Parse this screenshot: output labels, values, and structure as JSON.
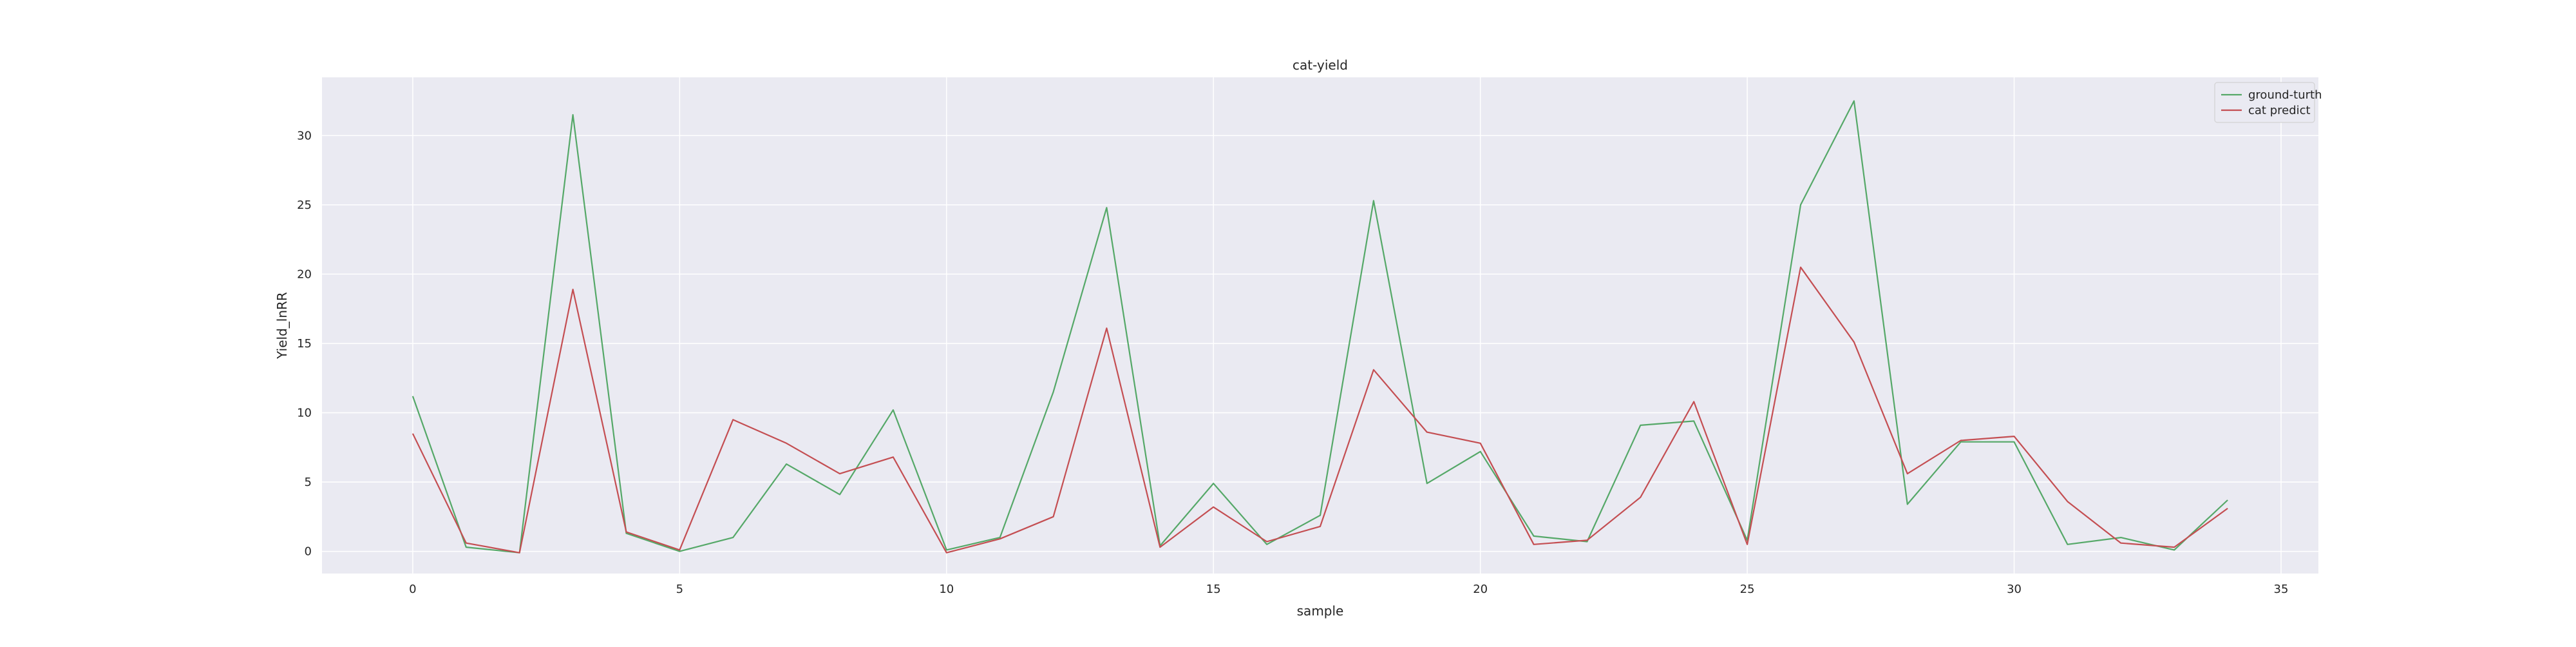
{
  "chart_data": {
    "type": "line",
    "title": "cat-yield",
    "xlabel": "sample",
    "ylabel": "Yield_lnRR",
    "xlim": [
      -1.7,
      35.7
    ],
    "ylim": [
      -1.6,
      34.2
    ],
    "xticks": [
      0,
      5,
      10,
      15,
      20,
      25,
      30,
      35
    ],
    "yticks": [
      0,
      5,
      10,
      15,
      20,
      25,
      30
    ],
    "grid": true,
    "legend_position": "top-right",
    "background_color": "#eaeaf2",
    "grid_color": "#ffffff",
    "x": [
      0,
      1,
      2,
      3,
      4,
      5,
      6,
      7,
      8,
      9,
      10,
      11,
      12,
      13,
      14,
      15,
      16,
      17,
      18,
      19,
      20,
      21,
      22,
      23,
      24,
      25,
      26,
      27,
      28,
      29,
      30,
      31,
      32,
      33,
      34
    ],
    "series": [
      {
        "name": "ground-turth",
        "color": "#55a868",
        "values": [
          11.2,
          0.3,
          -0.1,
          31.5,
          1.3,
          0.0,
          1.0,
          6.3,
          4.1,
          10.2,
          0.1,
          1.0,
          11.5,
          24.8,
          0.4,
          4.9,
          0.5,
          2.6,
          25.3,
          4.9,
          7.2,
          1.1,
          0.7,
          9.1,
          9.4,
          0.8,
          25.0,
          32.5,
          3.4,
          7.9,
          7.9,
          0.5,
          1.0,
          0.1,
          3.7
        ]
      },
      {
        "name": "cat predict",
        "color": "#c44e52",
        "values": [
          8.5,
          0.6,
          -0.1,
          18.9,
          1.4,
          0.1,
          9.5,
          7.8,
          5.6,
          6.8,
          -0.1,
          0.9,
          2.5,
          16.1,
          0.3,
          3.2,
          0.7,
          1.8,
          13.1,
          8.6,
          7.8,
          0.5,
          0.8,
          3.9,
          10.8,
          0.5,
          20.5,
          15.1,
          5.6,
          8.0,
          8.3,
          3.6,
          0.6,
          0.3,
          3.1
        ]
      }
    ]
  }
}
